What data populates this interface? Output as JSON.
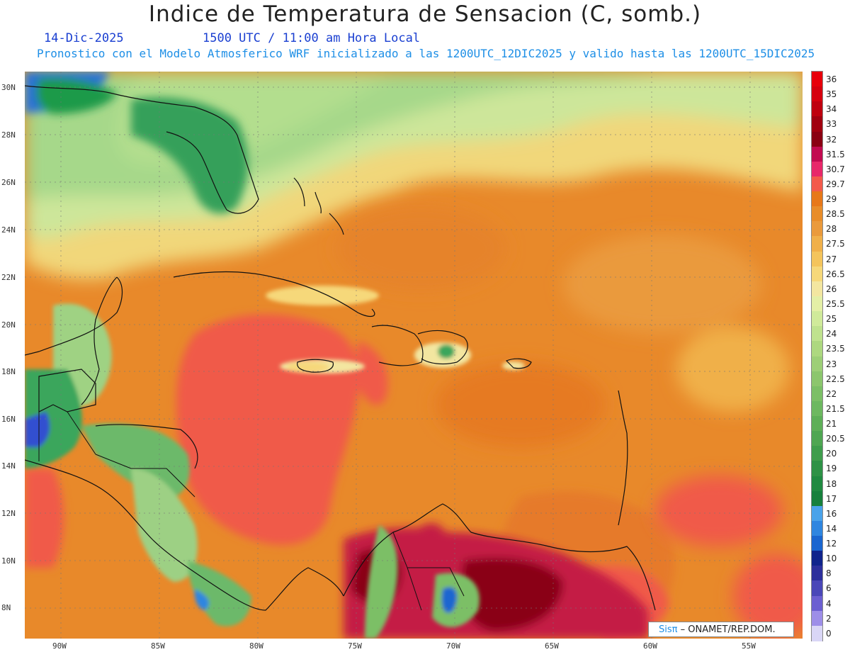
{
  "header": {
    "title": "Indice de Temperatura de Sensacion (C, somb.)",
    "date": "14-Dic-2025",
    "time": "1500 UTC / 11:00 am Hora Local",
    "subtitle": "Pronostico con el Modelo Atmosferico WRF inicializado a las 1200UTC_12DIC2025 y valido hasta las  1200UTC_15DIC2025"
  },
  "map": {
    "lat_labels": [
      "30N",
      "28N",
      "26N",
      "24N",
      "22N",
      "20N",
      "18N",
      "16N",
      "14N",
      "12N",
      "10N",
      "8N"
    ],
    "lon_labels": [
      "90W",
      "85W",
      "80W",
      "75W",
      "70W",
      "65W",
      "60W",
      "55W"
    ],
    "credit": {
      "brand": "Sisπ",
      "org": " – ONAMET/REP.DOM."
    }
  },
  "colorbar": {
    "labels": [
      "36",
      "35",
      "34",
      "33",
      "32",
      "31.5",
      "30.7",
      "29.7",
      "29",
      "28.5",
      "28",
      "27.5",
      "27",
      "26.5",
      "26",
      "25.5",
      "25",
      "24",
      "23.5",
      "23",
      "22.5",
      "22",
      "21.5",
      "21",
      "20.5",
      "20",
      "19",
      "18",
      "17",
      "16",
      "14",
      "12",
      "10",
      "8",
      "6",
      "4",
      "2",
      "0"
    ],
    "colors": [
      "#e8000b",
      "#d6000e",
      "#bf000f",
      "#a10010",
      "#8a0012",
      "#c20a50",
      "#e8286a",
      "#f35a4b",
      "#e7781a",
      "#e88d2a",
      "#ea9a3c",
      "#f0b04a",
      "#f4c45c",
      "#f6d87a",
      "#f3e6a0",
      "#e4efa6",
      "#d0ea9a",
      "#bfe28e",
      "#add880",
      "#9dcf77",
      "#8cc66d",
      "#7cbf66",
      "#6db860",
      "#5eaf58",
      "#4fa652",
      "#3f9d4c",
      "#2e9246",
      "#208a41",
      "#17803c",
      "#4aa3ea",
      "#2f86e0",
      "#1a66d0",
      "#10248c",
      "#2c2f9c",
      "#4a47b8",
      "#6c5fd1",
      "#9d8ee8",
      "#d9d6f6"
    ]
  }
}
